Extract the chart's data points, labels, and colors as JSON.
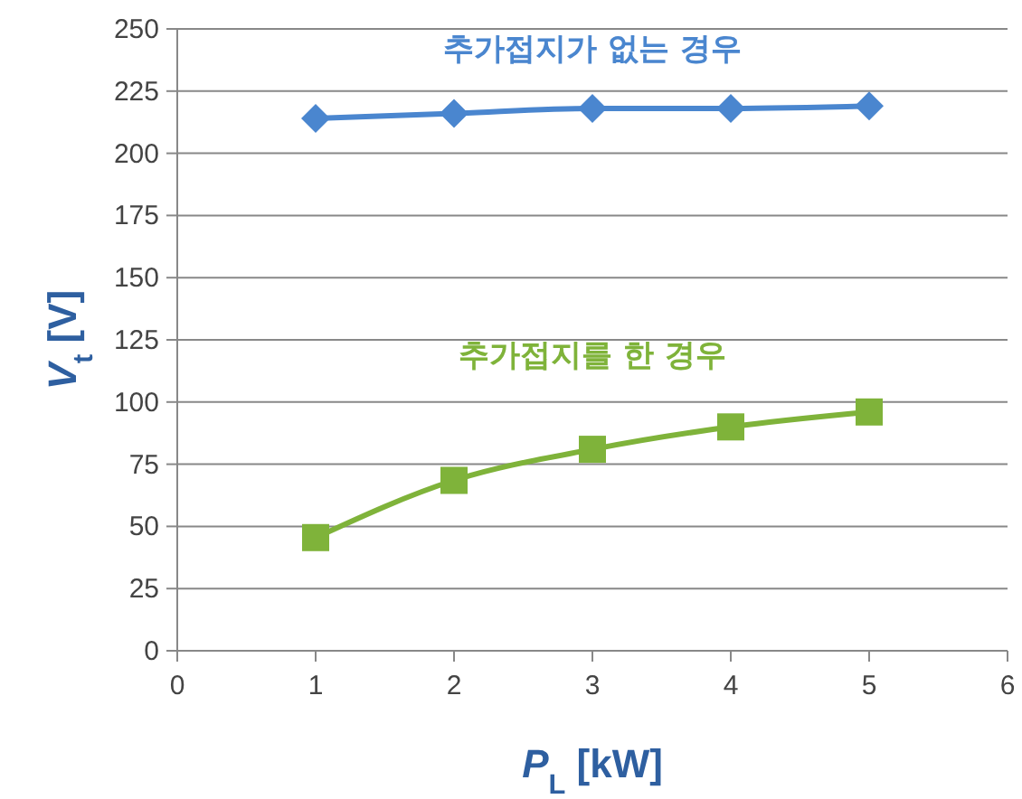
{
  "chart_data": {
    "type": "line",
    "xlabel": "P$_{L}$ [kW]",
    "ylabel": "V$_{t}$ [V]",
    "xlim": [
      0,
      6
    ],
    "xticks": [
      0,
      1,
      2,
      3,
      4,
      5,
      6
    ],
    "ylim": [
      0,
      250
    ],
    "yticks": [
      0,
      25,
      50,
      75,
      100,
      125,
      150,
      175,
      200,
      225,
      250
    ],
    "grid": "y",
    "line_style": "solid",
    "series": [
      {
        "name": "추가접지가 없는 경우",
        "color": "#4a86cf",
        "marker": "diamond",
        "x": [
          1,
          2,
          3,
          4,
          5
        ],
        "values": [
          214,
          216,
          218,
          218,
          219
        ]
      },
      {
        "name": "추가접지를 한 경우",
        "color": "#7fb33a",
        "marker": "square",
        "x": [
          1,
          2,
          3,
          4,
          5
        ],
        "values": [
          45.5,
          68.5,
          81,
          90,
          96
        ]
      }
    ]
  }
}
